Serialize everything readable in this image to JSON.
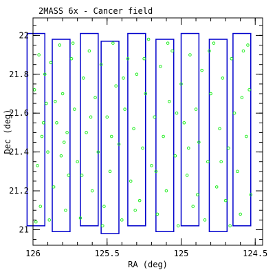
{
  "chart_data": {
    "type": "scatter",
    "title": "2MASS 6x - Cancer field",
    "xlabel": "RA (deg)",
    "ylabel": "Dec (deg)",
    "xlim": [
      126.0,
      124.45
    ],
    "ylim": [
      20.92,
      22.09
    ],
    "x_ticks": [
      "126",
      "125.5",
      "125",
      "124.5"
    ],
    "x_tick_values": [
      126.0,
      125.5,
      125.0,
      124.5
    ],
    "y_ticks": [
      "21",
      "21.2",
      "21.4",
      "21.6",
      "21.8",
      "22"
    ],
    "y_tick_values": [
      21.0,
      21.2,
      21.4,
      21.6,
      21.8,
      22.0
    ],
    "x_reversed": true,
    "grid": false,
    "colors": {
      "points": "#22ee22",
      "rectangles": "#0000cc",
      "axes": "#000000"
    },
    "rectangles": [
      {
        "ra_min": 125.92,
        "ra_max": 126.04,
        "dec_min": 21.02,
        "dec_max": 22.01
      },
      {
        "ra_min": 125.75,
        "ra_max": 125.87,
        "dec_min": 20.99,
        "dec_max": 21.98
      },
      {
        "ra_min": 125.56,
        "ra_max": 125.68,
        "dec_min": 21.02,
        "dec_max": 22.01
      },
      {
        "ra_min": 125.42,
        "ra_max": 125.54,
        "dec_min": 20.98,
        "dec_max": 21.97
      },
      {
        "ra_min": 125.24,
        "ra_max": 125.36,
        "dec_min": 21.02,
        "dec_max": 22.01
      },
      {
        "ra_min": 125.05,
        "ra_max": 125.17,
        "dec_min": 20.99,
        "dec_max": 21.98
      },
      {
        "ra_min": 124.88,
        "ra_max": 125.0,
        "dec_min": 21.02,
        "dec_max": 22.01
      },
      {
        "ra_min": 124.69,
        "ra_max": 124.81,
        "dec_min": 20.99,
        "dec_max": 21.98
      },
      {
        "ra_min": 124.53,
        "ra_max": 124.65,
        "dec_min": 21.02,
        "dec_max": 22.01
      }
    ],
    "points": [
      [
        125.96,
        21.9
      ],
      [
        125.99,
        21.72
      ],
      [
        125.93,
        21.55
      ],
      [
        125.97,
        21.33
      ],
      [
        125.95,
        21.12
      ],
      [
        125.98,
        21.04
      ],
      [
        125.91,
        21.65
      ],
      [
        125.9,
        21.4
      ],
      [
        125.88,
        21.86
      ],
      [
        125.86,
        21.22
      ],
      [
        125.84,
        21.55
      ],
      [
        125.82,
        21.95
      ],
      [
        125.8,
        21.7
      ],
      [
        125.78,
        21.1
      ],
      [
        125.79,
        21.45
      ],
      [
        125.76,
        21.28
      ],
      [
        125.74,
        21.88
      ],
      [
        125.72,
        21.62
      ],
      [
        125.7,
        21.35
      ],
      [
        125.68,
        21.06
      ],
      [
        125.66,
        21.78
      ],
      [
        125.64,
        21.5
      ],
      [
        125.62,
        21.92
      ],
      [
        125.6,
        21.2
      ],
      [
        125.58,
        21.68
      ],
      [
        125.56,
        21.4
      ],
      [
        125.54,
        21.85
      ],
      [
        125.52,
        21.12
      ],
      [
        125.5,
        21.58
      ],
      [
        125.48,
        21.3
      ],
      [
        125.46,
        21.96
      ],
      [
        125.44,
        21.74
      ],
      [
        125.42,
        21.44
      ],
      [
        125.4,
        21.05
      ],
      [
        125.38,
        21.62
      ],
      [
        125.36,
        21.88
      ],
      [
        125.34,
        21.25
      ],
      [
        125.32,
        21.52
      ],
      [
        125.3,
        21.8
      ],
      [
        125.28,
        21.15
      ],
      [
        125.26,
        21.42
      ],
      [
        125.24,
        21.7
      ],
      [
        125.22,
        21.98
      ],
      [
        125.2,
        21.33
      ],
      [
        125.18,
        21.58
      ],
      [
        125.16,
        21.08
      ],
      [
        125.14,
        21.84
      ],
      [
        125.12,
        21.48
      ],
      [
        125.1,
        21.2
      ],
      [
        125.08,
        21.66
      ],
      [
        125.06,
        21.92
      ],
      [
        125.04,
        21.38
      ],
      [
        125.02,
        21.02
      ],
      [
        125.0,
        21.75
      ],
      [
        124.98,
        21.55
      ],
      [
        124.96,
        21.28
      ],
      [
        124.94,
        21.9
      ],
      [
        124.92,
        21.12
      ],
      [
        124.9,
        21.62
      ],
      [
        124.88,
        21.45
      ],
      [
        124.86,
        21.82
      ],
      [
        124.84,
        21.05
      ],
      [
        124.82,
        21.35
      ],
      [
        124.8,
        21.7
      ],
      [
        124.78,
        21.96
      ],
      [
        124.76,
        21.22
      ],
      [
        124.74,
        21.52
      ],
      [
        124.72,
        21.78
      ],
      [
        124.7,
        21.15
      ],
      [
        124.68,
        21.42
      ],
      [
        124.66,
        21.88
      ],
      [
        124.64,
        21.6
      ],
      [
        124.62,
        21.3
      ],
      [
        124.6,
        21.08
      ],
      [
        124.58,
        21.92
      ],
      [
        124.56,
        21.48
      ],
      [
        124.54,
        21.72
      ],
      [
        124.53,
        21.18
      ],
      [
        125.94,
        21.48
      ],
      [
        125.89,
        21.05
      ],
      [
        125.81,
        21.38
      ],
      [
        125.73,
        21.96
      ],
      [
        125.67,
        21.28
      ],
      [
        125.61,
        21.58
      ],
      [
        125.53,
        21.02
      ],
      [
        125.47,
        21.48
      ],
      [
        125.39,
        21.78
      ],
      [
        125.31,
        21.1
      ],
      [
        125.25,
        21.88
      ],
      [
        125.17,
        21.3
      ],
      [
        125.09,
        21.96
      ],
      [
        125.03,
        21.6
      ],
      [
        124.95,
        21.42
      ],
      [
        124.89,
        21.18
      ],
      [
        124.81,
        21.92
      ],
      [
        124.73,
        21.35
      ],
      [
        124.67,
        21.02
      ],
      [
        124.59,
        21.68
      ],
      [
        124.55,
        21.95
      ],
      [
        125.92,
        21.8
      ],
      [
        125.85,
        21.66
      ],
      [
        125.77,
        21.5
      ]
    ]
  }
}
